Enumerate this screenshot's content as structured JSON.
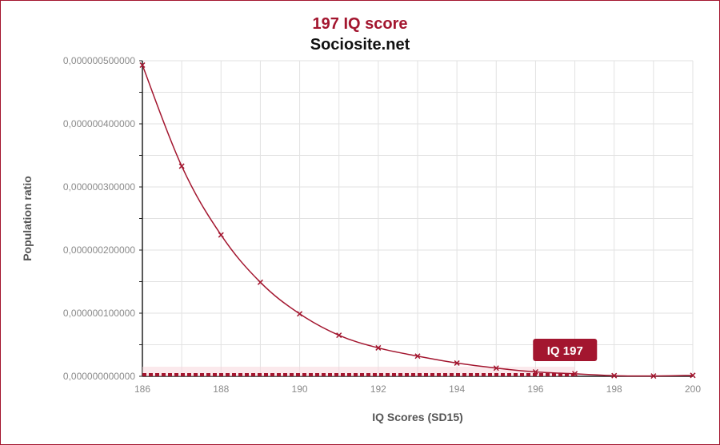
{
  "chart_data": {
    "type": "line",
    "title": "197 IQ score",
    "subtitle": "Sociosite.net",
    "xlabel": "IQ Scores (SD15)",
    "ylabel": "Population ratio",
    "xlim": [
      186,
      200
    ],
    "ylim": [
      0,
      5e-07
    ],
    "x_ticks": [
      "186",
      "188",
      "190",
      "192",
      "194",
      "196",
      "198",
      "200"
    ],
    "y_ticks": [
      "0,000000000000",
      "0,000000100000",
      "0,000000200000",
      "0,000000300000",
      "0,000000400000",
      "0,000000500000"
    ],
    "grid": true,
    "series": [
      {
        "values": [
          {
            "x": 186,
            "y": 4.93e-07
          },
          {
            "x": 187,
            "y": 3.33e-07
          },
          {
            "x": 188,
            "y": 2.24e-07
          },
          {
            "x": 189,
            "y": 1.49e-07
          },
          {
            "x": 190,
            "y": 9.9e-08
          },
          {
            "x": 191,
            "y": 6.5e-08
          },
          {
            "x": 192,
            "y": 4.5e-08
          },
          {
            "x": 193,
            "y": 3.2e-08
          },
          {
            "x": 194,
            "y": 2.1e-08
          },
          {
            "x": 195,
            "y": 1.3e-08
          },
          {
            "x": 196,
            "y": 7e-09
          },
          {
            "x": 197,
            "y": 4e-09
          },
          {
            "x": 198,
            "y": 1e-09
          },
          {
            "x": 199,
            "y": 5e-10
          },
          {
            "x": 200,
            "y": 1.5e-09
          }
        ]
      }
    ],
    "highlight": {
      "label": "IQ 197",
      "x_from": 186,
      "x_to": 197
    },
    "colors": {
      "line": "#a3162f",
      "grid": "#e2e2e2",
      "callout": "#a3162f"
    }
  }
}
